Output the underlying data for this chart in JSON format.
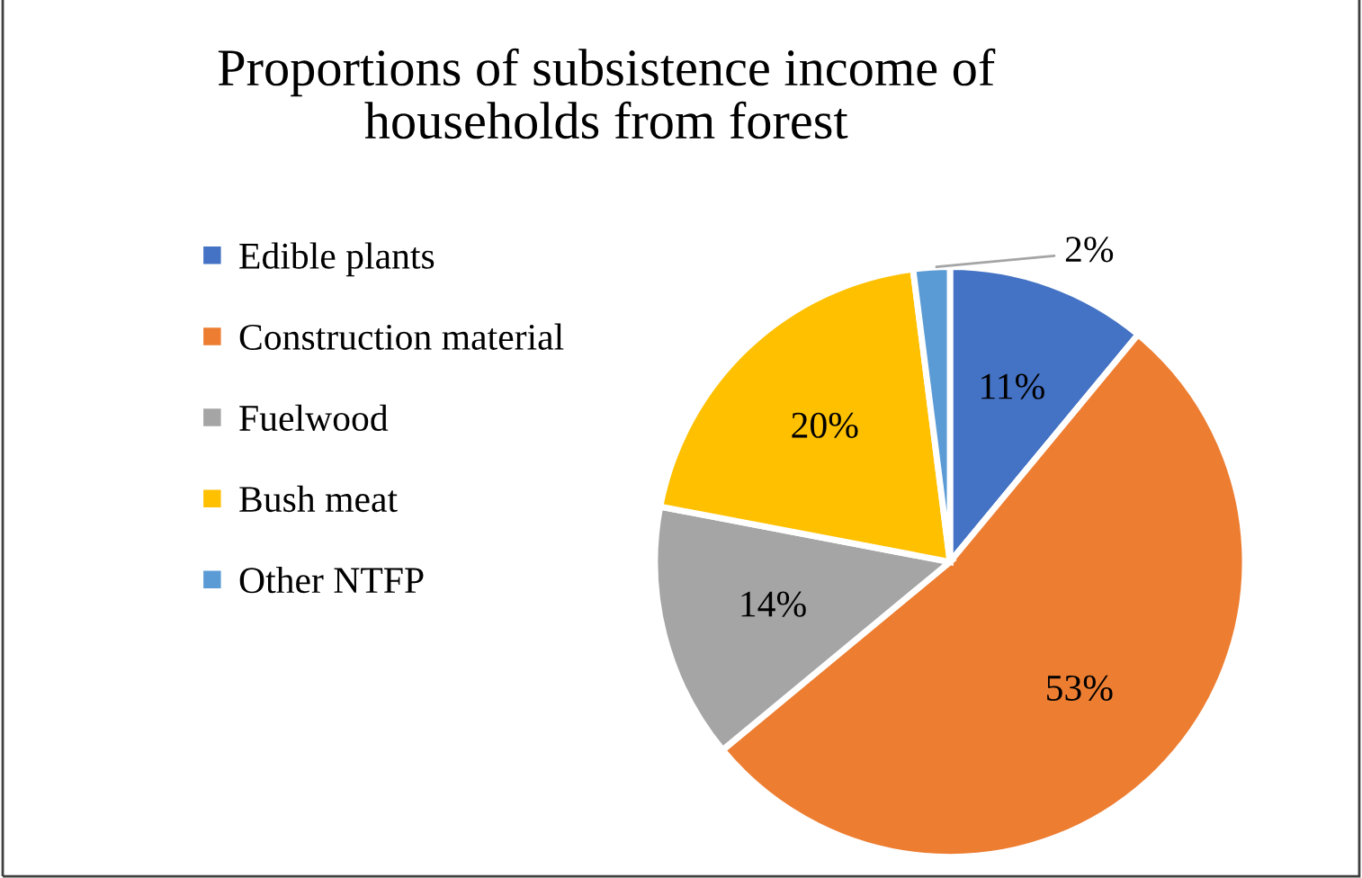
{
  "chart_data": {
    "type": "pie",
    "title": "Proportions of subsistence income of\nhouseholds from forest",
    "categories": [
      "Edible plants",
      "Construction material",
      "Fuelwood",
      "Bush meat",
      "Other NTFP"
    ],
    "values": [
      11,
      53,
      14,
      20,
      2
    ],
    "colors": [
      "#4472c4",
      "#ed7d31",
      "#a5a5a5",
      "#ffc000",
      "#5b9bd5"
    ],
    "value_labels": [
      "11%",
      "53%",
      "14%",
      "20%",
      "2%"
    ],
    "legend": "left"
  }
}
